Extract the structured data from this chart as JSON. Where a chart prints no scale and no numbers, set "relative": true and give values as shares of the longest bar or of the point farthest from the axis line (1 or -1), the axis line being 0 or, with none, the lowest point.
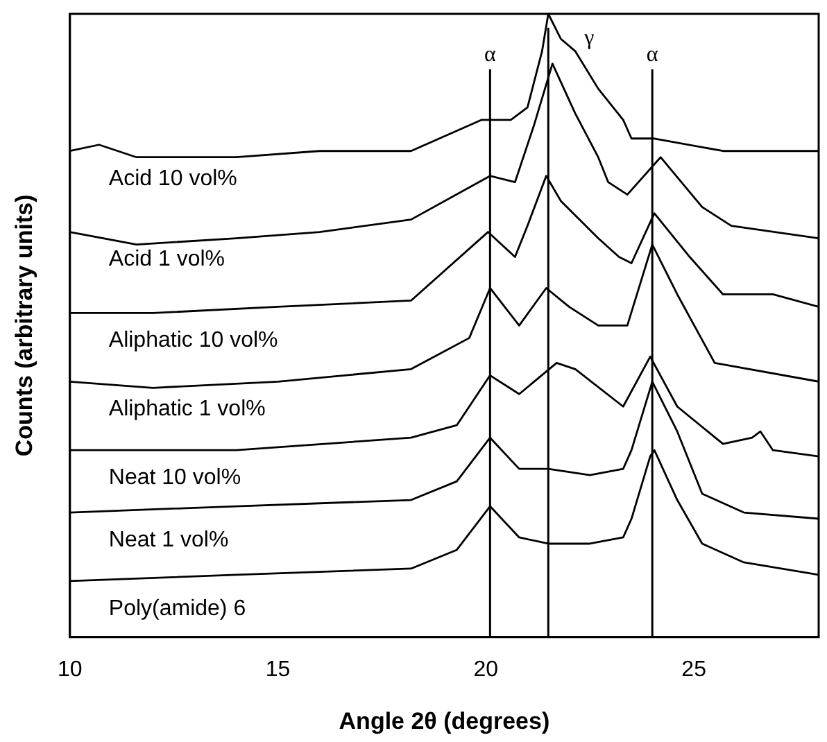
{
  "chart_data": {
    "type": "line",
    "relative": true,
    "xlabel": "Angle 2θ (degrees)",
    "ylabel": "Counts (arbitrary units)",
    "xlim": [
      10,
      28
    ],
    "xticks": [
      10,
      15,
      20,
      25
    ],
    "series": [
      {
        "name": "Acid 10 vol%",
        "color": "#000000",
        "x": [
          10,
          10.7,
          11.6,
          14,
          16,
          18.2,
          19.9,
          20.6,
          21,
          21.35,
          21.5,
          21.8,
          22.15,
          22.7,
          23.3,
          23.5,
          24.05,
          25.7,
          28
        ],
        "values": [
          0.78,
          0.79,
          0.77,
          0.77,
          0.78,
          0.78,
          0.83,
          0.83,
          0.85,
          0.94,
          1,
          0.96,
          0.94,
          0.88,
          0.83,
          0.8,
          0.8,
          0.78,
          0.78
        ]
      },
      {
        "name": "Acid 1 vol%",
        "color": "#000000",
        "x": [
          10,
          11.6,
          14,
          16,
          18.2,
          20.1,
          20.7,
          21.15,
          21.6,
          22.15,
          22.7,
          22.94,
          23.4,
          24.2,
          25.2,
          25.9,
          28
        ],
        "values": [
          0.65,
          0.63,
          0.64,
          0.65,
          0.67,
          0.74,
          0.73,
          0.82,
          0.92,
          0.84,
          0.77,
          0.73,
          0.71,
          0.77,
          0.69,
          0.66,
          0.64
        ]
      },
      {
        "name": "Aliphatic 10 vol%",
        "color": "#000000",
        "x": [
          10,
          12,
          15,
          18.2,
          20.05,
          20.7,
          21,
          21.45,
          21.8,
          22.7,
          23.2,
          23.5,
          24.05,
          24.9,
          25.7,
          26.9,
          28
        ],
        "values": [
          0.52,
          0.52,
          0.53,
          0.54,
          0.65,
          0.61,
          0.66,
          0.74,
          0.7,
          0.64,
          0.61,
          0.6,
          0.68,
          0.61,
          0.55,
          0.55,
          0.53
        ]
      },
      {
        "name": "Aliphatic 1 vol%",
        "color": "#000000",
        "x": [
          10,
          12,
          15,
          18.2,
          19.6,
          20.1,
          20.8,
          21.45,
          22,
          22.7,
          23.4,
          24,
          24.6,
          25.5,
          28
        ],
        "values": [
          0.41,
          0.4,
          0.41,
          0.43,
          0.48,
          0.56,
          0.5,
          0.56,
          0.53,
          0.5,
          0.5,
          0.63,
          0.55,
          0.44,
          0.41
        ]
      },
      {
        "name": "Neat 10 vol%",
        "color": "#000000",
        "x": [
          10,
          14,
          18.2,
          19.3,
          20.1,
          20.8,
          21.7,
          22.15,
          23.3,
          23.95,
          24.6,
          25.7,
          26.4,
          26.6,
          26.9,
          28
        ],
        "values": [
          0.3,
          0.3,
          0.32,
          0.34,
          0.42,
          0.39,
          0.44,
          0.43,
          0.37,
          0.45,
          0.37,
          0.31,
          0.32,
          0.33,
          0.3,
          0.29
        ]
      },
      {
        "name": "Neat 1 vol%",
        "color": "#000000",
        "x": [
          10,
          14,
          18.2,
          19.3,
          20.1,
          20.8,
          21.5,
          22.5,
          23.3,
          23.5,
          24,
          24.6,
          25.2,
          26.2,
          28
        ],
        "values": [
          0.2,
          0.21,
          0.22,
          0.25,
          0.32,
          0.27,
          0.27,
          0.26,
          0.27,
          0.3,
          0.41,
          0.33,
          0.23,
          0.2,
          0.19
        ]
      },
      {
        "name": "Poly(amide) 6",
        "color": "#000000",
        "x": [
          10,
          14,
          18.2,
          19.3,
          20.1,
          20.8,
          21.5,
          22.5,
          23.3,
          23.5,
          23.95,
          24.05,
          24.6,
          25.2,
          26.2,
          28
        ],
        "values": [
          0.09,
          0.1,
          0.11,
          0.14,
          0.21,
          0.16,
          0.15,
          0.15,
          0.16,
          0.19,
          0.29,
          0.3,
          0.22,
          0.15,
          0.12,
          0.1
        ]
      }
    ],
    "ref_lines": [
      {
        "axis": "x",
        "value": 20.1,
        "label": "α"
      },
      {
        "axis": "x",
        "value": 21.5,
        "label": "γ"
      },
      {
        "axis": "x",
        "value": 24.0,
        "label": "α"
      }
    ]
  }
}
